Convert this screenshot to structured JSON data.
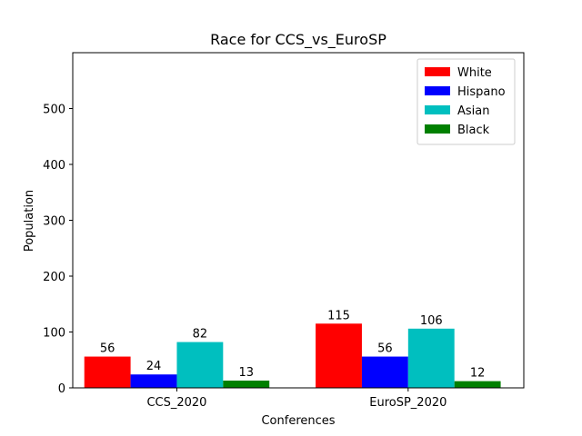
{
  "chart_data": {
    "type": "bar",
    "title": "Race for CCS_vs_EuroSP",
    "xlabel": "Conferences",
    "ylabel": "Population",
    "categories": [
      "CCS_2020",
      "EuroSP_2020"
    ],
    "series": [
      {
        "name": "White",
        "color": "#ff0000",
        "values": [
          56,
          115
        ]
      },
      {
        "name": "Hispano",
        "color": "#0000ff",
        "values": [
          24,
          56
        ]
      },
      {
        "name": "Asian",
        "color": "#00bfbf",
        "values": [
          82,
          106
        ]
      },
      {
        "name": "Black",
        "color": "#008000",
        "values": [
          13,
          12
        ]
      }
    ],
    "ylim": [
      0,
      600
    ],
    "yticks": [
      0,
      100,
      200,
      300,
      400,
      500
    ],
    "legend_position": "top-right",
    "grid": false
  }
}
